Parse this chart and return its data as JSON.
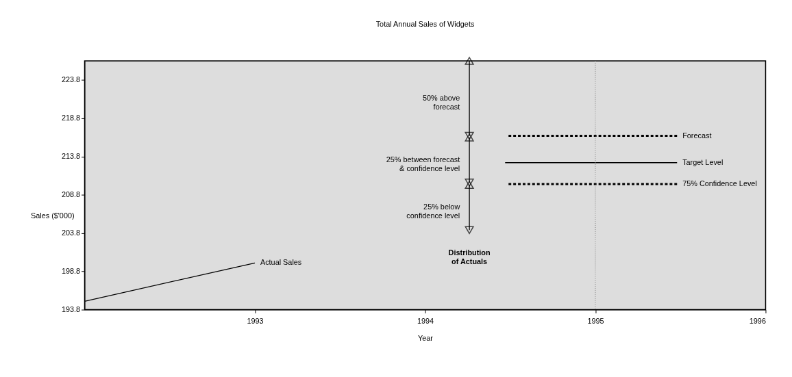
{
  "chart_data": {
    "type": "line",
    "title": "Total Annual Sales of Widgets",
    "xlabel": "Year",
    "ylabel": "Sales ($'000)",
    "xlim": [
      1992,
      1996
    ],
    "xticks": [
      1993,
      1994,
      1995,
      1996
    ],
    "ylim": [
      193.8,
      226.3
    ],
    "yticks": [
      193.8,
      198.8,
      203.8,
      208.8,
      213.8,
      218.8,
      223.8
    ],
    "grid": false,
    "marker": "none",
    "series": [
      {
        "name": "Actual Sales",
        "color": "#000000",
        "x": [
          1992,
          1993
        ],
        "values": [
          194.9,
          199.9
        ],
        "line_style": "solid"
      },
      {
        "name": "Forecast",
        "color": "#000000",
        "x": [
          1994.49,
          1995.48
        ],
        "values": [
          216.5,
          216.5
        ],
        "line_style": "dashed"
      },
      {
        "name": "Target Level",
        "color": "#000000",
        "x": [
          1994.47,
          1995.48
        ],
        "values": [
          213.0,
          213.0
        ],
        "line_style": "solid"
      },
      {
        "name": "75% Confidence Level",
        "color": "#000000",
        "x": [
          1994.49,
          1995.48
        ],
        "values": [
          210.2,
          210.2
        ],
        "line_style": "dashed"
      },
      {
        "color": "#000000",
        "x": [
          1994.26,
          1994.26
        ],
        "values": [
          226.3,
          216.5
        ],
        "line_style": "solid",
        "marker": "triangle"
      },
      {
        "color": "#000000",
        "x": [
          1994.26,
          1994.26
        ],
        "values": [
          216.3,
          210.4
        ],
        "line_style": "solid",
        "marker": "triangle"
      },
      {
        "color": "#000000",
        "x": [
          1994.26,
          1994.26
        ],
        "values": [
          210.1,
          204.2
        ],
        "line_style": "solid",
        "marker": "triangle"
      }
    ],
    "ref_lines": [
      {
        "axis": "x",
        "value": 1995,
        "color": "#808080",
        "line_style": "dotted"
      }
    ],
    "annotations": [
      "50% above\nforecast",
      "25% between forecast\n& confidence level",
      "25% below\nconfidence level",
      "Distribution\nof Actuals"
    ]
  }
}
